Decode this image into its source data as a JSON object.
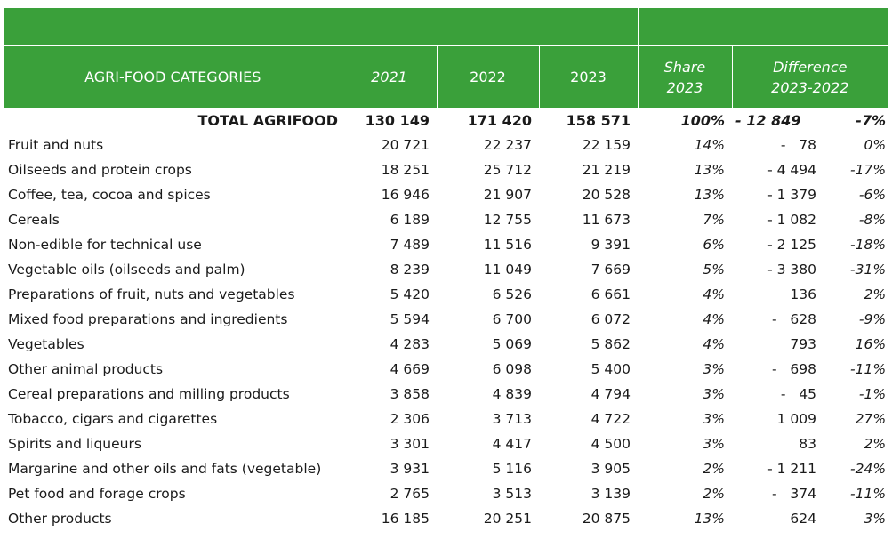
{
  "header": {
    "category": "AGRI-FOOD CATEGORIES",
    "y2021": "2021",
    "y2022": "2022",
    "y2023": "2023",
    "share_l1": "Share",
    "share_l2": "2023",
    "diff_l1": "Difference",
    "diff_l2": "2023-2022"
  },
  "total": {
    "label": "TOTAL AGRIFOOD",
    "v2021": "130 149",
    "v2022": "171 420",
    "v2023": "158 571",
    "share": "100%",
    "diff": "- 12 849",
    "pct": "-7%"
  },
  "rows": [
    {
      "label": "Fruit and nuts",
      "v2021": "20 721",
      "v2022": "22 237",
      "v2023": "22 159",
      "share": "14%",
      "diff": "-   78",
      "pct": "0%"
    },
    {
      "label": "Oilseeds and protein crops",
      "v2021": "18 251",
      "v2022": "25 712",
      "v2023": "21 219",
      "share": "13%",
      "diff": "- 4 494",
      "pct": "-17%"
    },
    {
      "label": "Coffee, tea, cocoa and spices",
      "v2021": "16 946",
      "v2022": "21 907",
      "v2023": "20 528",
      "share": "13%",
      "diff": "- 1 379",
      "pct": "-6%"
    },
    {
      "label": "Cereals",
      "v2021": "6 189",
      "v2022": "12 755",
      "v2023": "11 673",
      "share": "7%",
      "diff": "- 1 082",
      "pct": "-8%"
    },
    {
      "label": "Non-edible for technical use",
      "v2021": "7 489",
      "v2022": "11 516",
      "v2023": "9 391",
      "share": "6%",
      "diff": "- 2 125",
      "pct": "-18%"
    },
    {
      "label": "Vegetable oils (oilseeds and palm)",
      "v2021": "8 239",
      "v2022": "11 049",
      "v2023": "7 669",
      "share": "5%",
      "diff": "- 3 380",
      "pct": "-31%"
    },
    {
      "label": "Preparations of fruit, nuts and vegetables",
      "v2021": "5 420",
      "v2022": "6 526",
      "v2023": "6 661",
      "share": "4%",
      "diff": "136",
      "pct": "2%"
    },
    {
      "label": "Mixed food preparations and ingredients",
      "v2021": "5 594",
      "v2022": "6 700",
      "v2023": "6 072",
      "share": "4%",
      "diff": "-   628",
      "pct": "-9%"
    },
    {
      "label": "Vegetables",
      "v2021": "4 283",
      "v2022": "5 069",
      "v2023": "5 862",
      "share": "4%",
      "diff": "793",
      "pct": "16%"
    },
    {
      "label": "Other animal products",
      "v2021": "4 669",
      "v2022": "6 098",
      "v2023": "5 400",
      "share": "3%",
      "diff": "-   698",
      "pct": "-11%"
    },
    {
      "label": "Cereal preparations and milling products",
      "v2021": "3 858",
      "v2022": "4 839",
      "v2023": "4 794",
      "share": "3%",
      "diff": "-   45",
      "pct": "-1%"
    },
    {
      "label": "Tobacco, cigars and cigarettes",
      "v2021": "2 306",
      "v2022": "3 713",
      "v2023": "4 722",
      "share": "3%",
      "diff": "1 009",
      "pct": "27%"
    },
    {
      "label": "Spirits and liqueurs",
      "v2021": "3 301",
      "v2022": "4 417",
      "v2023": "4 500",
      "share": "3%",
      "diff": "83",
      "pct": "2%"
    },
    {
      "label": "Margarine and other oils and fats (vegetable)",
      "v2021": "3 931",
      "v2022": "5 116",
      "v2023": "3 905",
      "share": "2%",
      "diff": "- 1 211",
      "pct": "-24%"
    },
    {
      "label": "Pet food and forage crops",
      "v2021": "2 765",
      "v2022": "3 513",
      "v2023": "3 139",
      "share": "2%",
      "diff": "-   374",
      "pct": "-11%"
    },
    {
      "label": "Other products",
      "v2021": "16 185",
      "v2022": "20 251",
      "v2023": "20 875",
      "share": "13%",
      "diff": "624",
      "pct": "3%"
    }
  ],
  "colors": {
    "header_bg": "#3aa03a",
    "header_text": "#ffffff",
    "body_text": "#1a1a1a"
  }
}
